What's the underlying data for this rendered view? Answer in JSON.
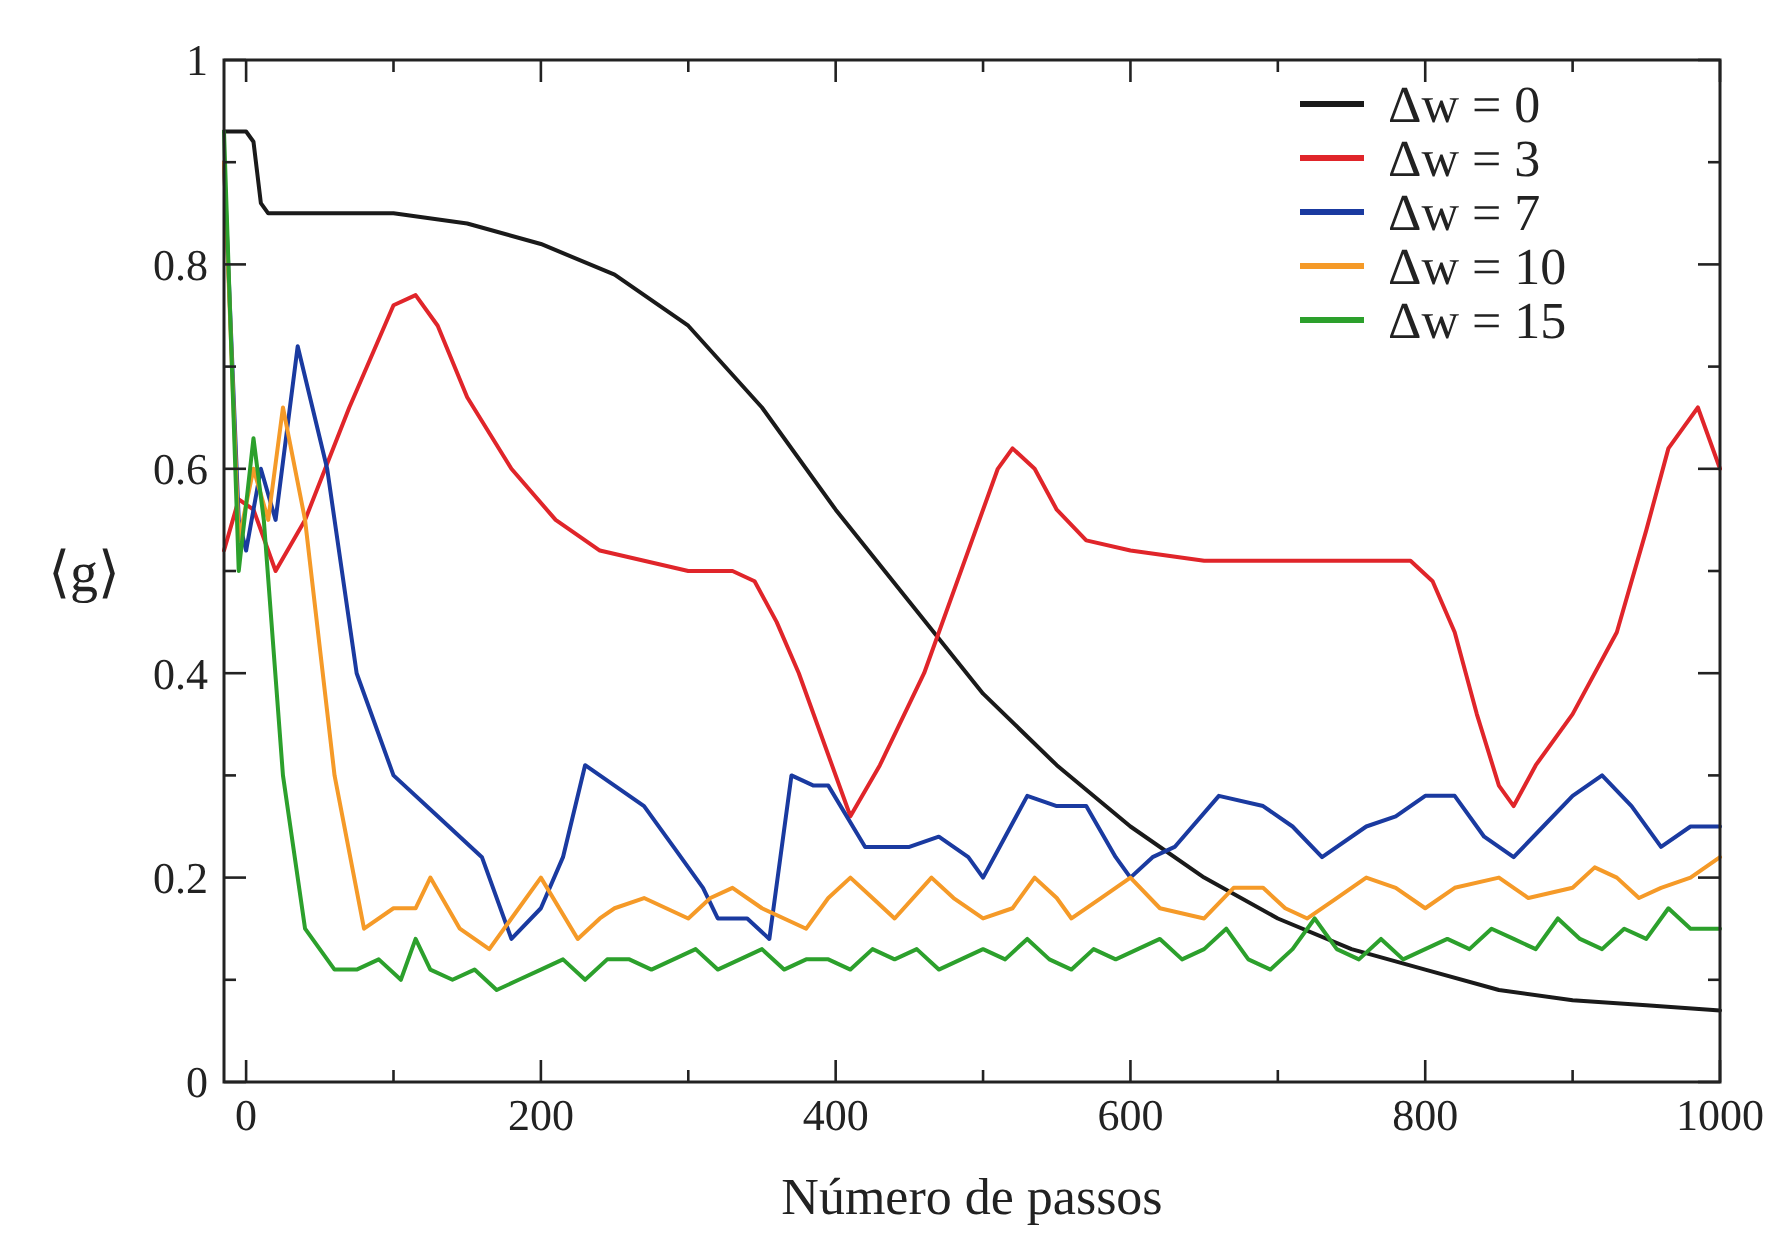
{
  "chart_data": {
    "type": "line",
    "xlabel": "Número de passos",
    "ylabel": "⟨g⟩",
    "xlim": [
      -15,
      1000
    ],
    "ylim": [
      0,
      1
    ],
    "xticks": [
      0,
      {
        "value": 100,
        "label": null
      },
      200,
      {
        "value": 300,
        "label": null
      },
      400,
      {
        "value": 500,
        "label": null
      },
      600,
      {
        "value": 700,
        "label": null
      },
      800,
      {
        "value": 900,
        "label": null
      },
      1000
    ],
    "yticks": [
      0,
      {
        "value": 0.1,
        "label": null
      },
      0.2,
      {
        "value": 0.3,
        "label": null
      },
      0.4,
      {
        "value": 0.5,
        "label": null
      },
      0.6,
      {
        "value": 0.7,
        "label": null
      },
      0.8,
      {
        "value": 0.9,
        "label": null
      },
      1
    ],
    "legend": "top right",
    "grid": false,
    "marker": "none",
    "line_style": "solid",
    "series": [
      {
        "name": "Δw = 0",
        "color": "#1a1a1a",
        "x": [
          -15,
          0,
          5,
          10,
          15,
          50,
          100,
          150,
          200,
          250,
          300,
          350,
          400,
          450,
          500,
          550,
          600,
          650,
          700,
          750,
          800,
          850,
          900,
          950,
          1000
        ],
        "values": [
          0.93,
          0.93,
          0.92,
          0.86,
          0.85,
          0.85,
          0.85,
          0.84,
          0.82,
          0.79,
          0.74,
          0.66,
          0.56,
          0.47,
          0.38,
          0.31,
          0.25,
          0.2,
          0.16,
          0.13,
          0.11,
          0.09,
          0.08,
          0.075,
          0.07
        ]
      },
      {
        "name": "Δw = 3",
        "color": "#e0252a",
        "x": [
          -15,
          -5,
          5,
          20,
          40,
          70,
          100,
          115,
          130,
          150,
          180,
          210,
          240,
          270,
          300,
          330,
          345,
          360,
          375,
          390,
          410,
          430,
          460,
          490,
          510,
          520,
          535,
          550,
          570,
          600,
          650,
          700,
          750,
          790,
          805,
          820,
          835,
          850,
          860,
          875,
          900,
          930,
          950,
          965,
          975,
          985,
          1000
        ],
        "values": [
          0.52,
          0.57,
          0.56,
          0.5,
          0.55,
          0.66,
          0.76,
          0.77,
          0.74,
          0.67,
          0.6,
          0.55,
          0.52,
          0.51,
          0.5,
          0.5,
          0.49,
          0.45,
          0.4,
          0.34,
          0.26,
          0.31,
          0.4,
          0.52,
          0.6,
          0.62,
          0.6,
          0.56,
          0.53,
          0.52,
          0.51,
          0.51,
          0.51,
          0.51,
          0.49,
          0.44,
          0.36,
          0.29,
          0.27,
          0.31,
          0.36,
          0.44,
          0.54,
          0.62,
          0.64,
          0.66,
          0.6
        ]
      },
      {
        "name": "Δw = 7",
        "color": "#1a3aa0",
        "x": [
          -15,
          -5,
          0,
          10,
          20,
          35,
          55,
          75,
          100,
          130,
          160,
          180,
          200,
          215,
          230,
          250,
          270,
          290,
          310,
          320,
          340,
          355,
          370,
          385,
          395,
          420,
          450,
          470,
          490,
          500,
          515,
          530,
          550,
          570,
          590,
          600,
          615,
          630,
          660,
          690,
          710,
          730,
          760,
          780,
          800,
          820,
          840,
          860,
          880,
          900,
          920,
          940,
          960,
          980,
          1000
        ],
        "values": [
          0.9,
          0.55,
          0.52,
          0.6,
          0.55,
          0.72,
          0.6,
          0.4,
          0.3,
          0.26,
          0.22,
          0.14,
          0.17,
          0.22,
          0.31,
          0.29,
          0.27,
          0.23,
          0.19,
          0.16,
          0.16,
          0.14,
          0.3,
          0.29,
          0.29,
          0.23,
          0.23,
          0.24,
          0.22,
          0.2,
          0.24,
          0.28,
          0.27,
          0.27,
          0.22,
          0.2,
          0.22,
          0.23,
          0.28,
          0.27,
          0.25,
          0.22,
          0.25,
          0.26,
          0.28,
          0.28,
          0.24,
          0.22,
          0.25,
          0.28,
          0.3,
          0.27,
          0.23,
          0.25,
          0.25
        ]
      },
      {
        "name": "Δw = 10",
        "color": "#f59a28",
        "x": [
          -15,
          -5,
          5,
          15,
          25,
          40,
          60,
          80,
          100,
          115,
          125,
          145,
          165,
          180,
          200,
          225,
          240,
          250,
          270,
          285,
          300,
          315,
          330,
          350,
          380,
          395,
          410,
          425,
          440,
          465,
          480,
          500,
          520,
          535,
          550,
          560,
          580,
          600,
          620,
          650,
          670,
          690,
          705,
          720,
          740,
          760,
          780,
          800,
          820,
          850,
          870,
          900,
          915,
          930,
          945,
          960,
          980,
          1000
        ],
        "values": [
          0.9,
          0.53,
          0.6,
          0.55,
          0.66,
          0.55,
          0.3,
          0.15,
          0.17,
          0.17,
          0.2,
          0.15,
          0.13,
          0.16,
          0.2,
          0.14,
          0.16,
          0.17,
          0.18,
          0.17,
          0.16,
          0.18,
          0.19,
          0.17,
          0.15,
          0.18,
          0.2,
          0.18,
          0.16,
          0.2,
          0.18,
          0.16,
          0.17,
          0.2,
          0.18,
          0.16,
          0.18,
          0.2,
          0.17,
          0.16,
          0.19,
          0.19,
          0.17,
          0.16,
          0.18,
          0.2,
          0.19,
          0.17,
          0.19,
          0.2,
          0.18,
          0.19,
          0.21,
          0.2,
          0.18,
          0.19,
          0.2,
          0.22
        ]
      },
      {
        "name": "Δw = 15",
        "color": "#2ca02c",
        "x": [
          -15,
          -5,
          5,
          12,
          25,
          40,
          60,
          75,
          90,
          105,
          115,
          125,
          140,
          155,
          170,
          185,
          200,
          215,
          230,
          245,
          260,
          275,
          290,
          305,
          320,
          335,
          350,
          365,
          380,
          395,
          410,
          425,
          440,
          455,
          470,
          485,
          500,
          515,
          530,
          545,
          560,
          575,
          590,
          605,
          620,
          635,
          650,
          665,
          680,
          695,
          710,
          725,
          740,
          755,
          770,
          785,
          800,
          815,
          830,
          845,
          860,
          875,
          890,
          905,
          920,
          935,
          950,
          965,
          980,
          1000
        ],
        "values": [
          0.93,
          0.5,
          0.63,
          0.55,
          0.3,
          0.15,
          0.11,
          0.11,
          0.12,
          0.1,
          0.14,
          0.11,
          0.1,
          0.11,
          0.09,
          0.1,
          0.11,
          0.12,
          0.1,
          0.12,
          0.12,
          0.11,
          0.12,
          0.13,
          0.11,
          0.12,
          0.13,
          0.11,
          0.12,
          0.12,
          0.11,
          0.13,
          0.12,
          0.13,
          0.11,
          0.12,
          0.13,
          0.12,
          0.14,
          0.12,
          0.11,
          0.13,
          0.12,
          0.13,
          0.14,
          0.12,
          0.13,
          0.15,
          0.12,
          0.11,
          0.13,
          0.16,
          0.13,
          0.12,
          0.14,
          0.12,
          0.13,
          0.14,
          0.13,
          0.15,
          0.14,
          0.13,
          0.16,
          0.14,
          0.13,
          0.15,
          0.14,
          0.17,
          0.15,
          0.15
        ]
      }
    ]
  }
}
